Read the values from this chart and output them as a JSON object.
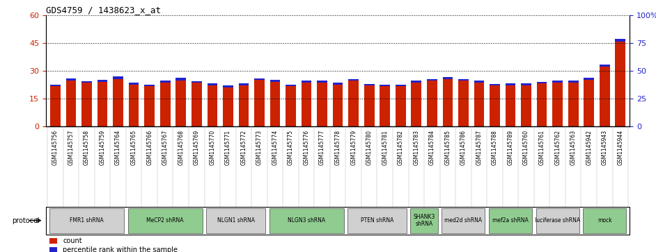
{
  "title": "GDS4759 / 1438623_x_at",
  "samples": [
    "GSM1145756",
    "GSM1145757",
    "GSM1145758",
    "GSM1145759",
    "GSM1145764",
    "GSM1145765",
    "GSM1145766",
    "GSM1145767",
    "GSM1145768",
    "GSM1145769",
    "GSM1145770",
    "GSM1145771",
    "GSM1145772",
    "GSM1145773",
    "GSM1145774",
    "GSM1145775",
    "GSM1145776",
    "GSM1145777",
    "GSM1145778",
    "GSM1145779",
    "GSM1145780",
    "GSM1145781",
    "GSM1145782",
    "GSM1145783",
    "GSM1145784",
    "GSM1145785",
    "GSM1145786",
    "GSM1145787",
    "GSM1145788",
    "GSM1145789",
    "GSM1145760",
    "GSM1145761",
    "GSM1145762",
    "GSM1145763",
    "GSM1145942",
    "GSM1145943",
    "GSM1145944"
  ],
  "red_values": [
    21.5,
    24.5,
    23.5,
    24.0,
    25.5,
    22.5,
    21.5,
    23.5,
    24.5,
    23.5,
    22.0,
    21.0,
    22.0,
    25.0,
    24.0,
    21.5,
    23.5,
    23.5,
    22.5,
    24.5,
    22.0,
    21.5,
    21.5,
    23.5,
    24.5,
    25.5,
    24.5,
    23.5,
    22.0,
    22.0,
    22.0,
    23.0,
    23.5,
    23.5,
    25.0,
    32.0,
    45.5
  ],
  "blue_values": [
    1.0,
    1.2,
    0.8,
    1.0,
    1.2,
    1.0,
    1.0,
    1.2,
    1.5,
    0.8,
    1.0,
    1.0,
    1.0,
    0.8,
    1.0,
    1.0,
    1.2,
    1.0,
    1.0,
    1.0,
    0.8,
    0.8,
    0.8,
    1.0,
    1.0,
    1.0,
    1.0,
    1.0,
    0.8,
    1.0,
    1.0,
    1.0,
    1.0,
    1.0,
    1.2,
    1.2,
    1.5
  ],
  "ylim_left": [
    0,
    60
  ],
  "ylim_right": [
    0,
    100
  ],
  "yticks_left": [
    0,
    15,
    30,
    45,
    60
  ],
  "yticks_right": [
    0,
    25,
    50,
    75,
    100
  ],
  "protocols": [
    {
      "label": "FMR1 shRNA",
      "start": 0,
      "end": 4,
      "color": "#d0d0d0"
    },
    {
      "label": "MeCP2 shRNA",
      "start": 5,
      "end": 9,
      "color": "#90cc90"
    },
    {
      "label": "NLGN1 shRNA",
      "start": 10,
      "end": 13,
      "color": "#d0d0d0"
    },
    {
      "label": "NLGN3 shRNA",
      "start": 14,
      "end": 18,
      "color": "#90cc90"
    },
    {
      "label": "PTEN shRNA",
      "start": 19,
      "end": 22,
      "color": "#d0d0d0"
    },
    {
      "label": "SHANK3\nshRNA",
      "start": 23,
      "end": 24,
      "color": "#90cc90"
    },
    {
      "label": "med2d shRNA",
      "start": 25,
      "end": 27,
      "color": "#d0d0d0"
    },
    {
      "label": "mef2a shRNA",
      "start": 28,
      "end": 30,
      "color": "#90cc90"
    },
    {
      "label": "luciferase shRNA",
      "start": 31,
      "end": 33,
      "color": "#d0d0d0"
    },
    {
      "label": "mock",
      "start": 34,
      "end": 36,
      "color": "#90cc90"
    }
  ],
  "bar_color_red": "#cc2200",
  "bar_color_blue": "#2222cc",
  "bar_width": 0.65,
  "bg_color": "#ffffff",
  "left_axis_color": "#cc2200",
  "right_axis_color": "#2222cc",
  "sample_bg_color": "#d8d8d8",
  "protocol_label": "protocol"
}
